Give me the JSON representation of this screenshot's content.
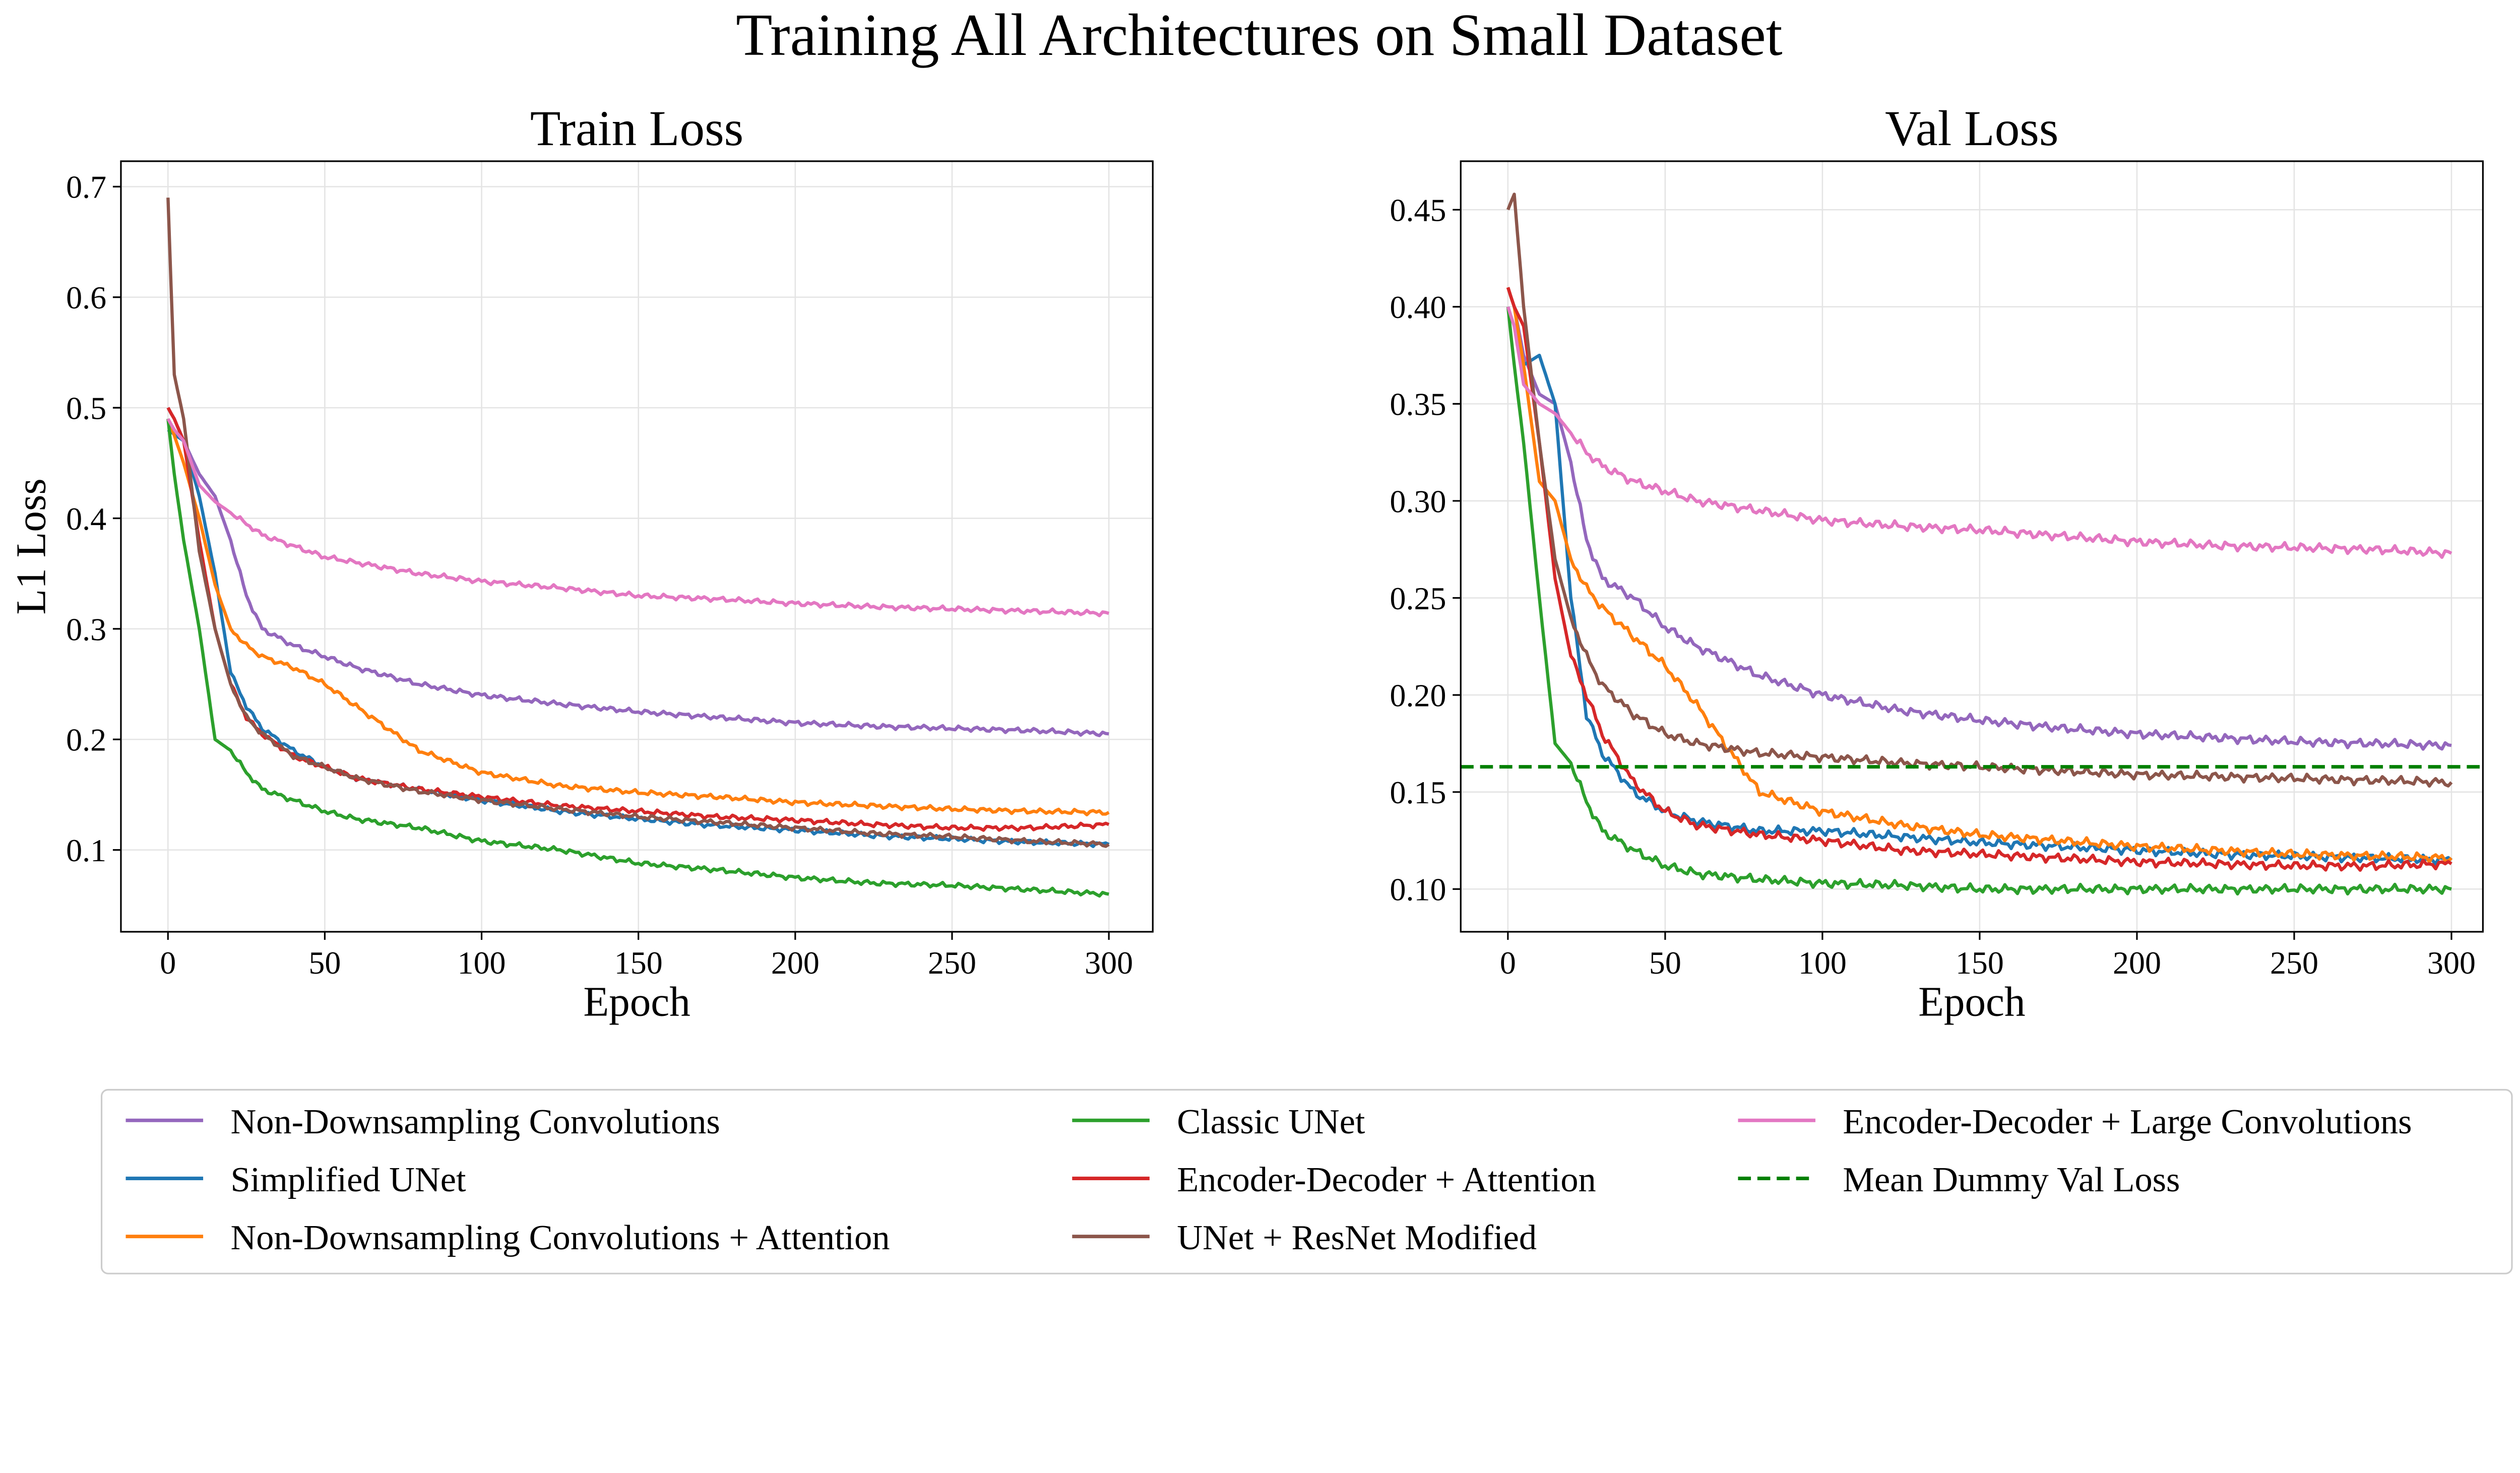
{
  "title": "Training All Architectures on Small Dataset",
  "chart_data": [
    {
      "type": "line",
      "title": "Train Loss",
      "xlabel": "Epoch",
      "ylabel": "L1 Loss",
      "xlim": [
        -15,
        314
      ],
      "ylim": [
        0.026,
        0.723
      ],
      "xticks": [
        0,
        50,
        100,
        150,
        200,
        250,
        300
      ],
      "yticks": [
        0.1,
        0.2,
        0.3,
        0.4,
        0.5,
        0.6,
        0.7
      ],
      "ytick_labels": [
        "0.1",
        "0.2",
        "0.3",
        "0.4",
        "0.5",
        "0.6",
        "0.7"
      ],
      "grid": true,
      "x": [
        0,
        2,
        5,
        10,
        15,
        20,
        25,
        30,
        40,
        50,
        60,
        80,
        100,
        125,
        150,
        175,
        200,
        225,
        250,
        275,
        300
      ],
      "series": [
        {
          "name": "Non-Downsampling Convolutions",
          "color": "#9467bd",
          "values": [
            0.5,
            0.49,
            0.47,
            0.44,
            0.42,
            0.38,
            0.33,
            0.3,
            0.285,
            0.275,
            0.265,
            0.25,
            0.24,
            0.232,
            0.225,
            0.22,
            0.215,
            0.212,
            0.21,
            0.208,
            0.205
          ]
        },
        {
          "name": "Simplified UNet",
          "color": "#1f77b4",
          "values": [
            0.48,
            0.476,
            0.47,
            0.42,
            0.35,
            0.26,
            0.23,
            0.21,
            0.19,
            0.175,
            0.165,
            0.155,
            0.145,
            0.135,
            0.128,
            0.122,
            0.118,
            0.113,
            0.11,
            0.107,
            0.105
          ]
        },
        {
          "name": "Non-Downsampling Convolutions + Attention",
          "color": "#ff7f0e",
          "values": [
            0.49,
            0.475,
            0.45,
            0.4,
            0.34,
            0.3,
            0.285,
            0.275,
            0.265,
            0.25,
            0.23,
            0.19,
            0.17,
            0.158,
            0.152,
            0.148,
            0.143,
            0.14,
            0.137,
            0.135,
            0.134
          ]
        },
        {
          "name": "Classic UNet",
          "color": "#2ca02c",
          "values": [
            0.49,
            0.44,
            0.38,
            0.3,
            0.2,
            0.19,
            0.17,
            0.155,
            0.145,
            0.135,
            0.128,
            0.12,
            0.108,
            0.1,
            0.088,
            0.082,
            0.075,
            0.07,
            0.068,
            0.064,
            0.06
          ]
        },
        {
          "name": "Encoder-Decoder + Attention",
          "color": "#d62728",
          "values": [
            0.5,
            0.49,
            0.47,
            0.38,
            0.3,
            0.25,
            0.22,
            0.205,
            0.185,
            0.175,
            0.165,
            0.155,
            0.148,
            0.14,
            0.135,
            0.13,
            0.127,
            0.123,
            0.12,
            0.12,
            0.123
          ]
        },
        {
          "name": "UNet + ResNet Modified",
          "color": "#8c564b",
          "values": [
            0.69,
            0.53,
            0.49,
            0.37,
            0.3,
            0.25,
            0.22,
            0.205,
            0.185,
            0.175,
            0.165,
            0.153,
            0.145,
            0.137,
            0.13,
            0.125,
            0.12,
            0.115,
            0.112,
            0.108,
            0.105
          ]
        },
        {
          "name": "Encoder-Decoder + Large Convolutions",
          "color": "#e377c2",
          "values": [
            0.49,
            0.48,
            0.47,
            0.43,
            0.415,
            0.405,
            0.395,
            0.385,
            0.375,
            0.365,
            0.36,
            0.35,
            0.343,
            0.337,
            0.33,
            0.327,
            0.323,
            0.32,
            0.318,
            0.316,
            0.314
          ]
        }
      ]
    },
    {
      "type": "line",
      "title": "Val Loss",
      "xlabel": "Epoch",
      "ylabel": "",
      "xlim": [
        -15,
        310
      ],
      "ylim": [
        0.078,
        0.475
      ],
      "xticks": [
        0,
        50,
        100,
        150,
        200,
        250,
        300
      ],
      "yticks": [
        0.1,
        0.15,
        0.2,
        0.25,
        0.3,
        0.35,
        0.4,
        0.45
      ],
      "ytick_labels": [
        "0.10",
        "0.15",
        "0.20",
        "0.25",
        "0.30",
        "0.35",
        "0.40",
        "0.45"
      ],
      "grid": true,
      "x": [
        0,
        2,
        5,
        10,
        15,
        20,
        25,
        30,
        40,
        50,
        60,
        80,
        100,
        125,
        150,
        175,
        200,
        225,
        250,
        275,
        300
      ],
      "series": [
        {
          "name": "Non-Downsampling Convolutions",
          "color": "#9467bd",
          "values": [
            0.41,
            0.4,
            0.375,
            0.355,
            0.35,
            0.32,
            0.28,
            0.26,
            0.25,
            0.235,
            0.225,
            0.21,
            0.2,
            0.192,
            0.187,
            0.183,
            0.18,
            0.178,
            0.176,
            0.175,
            0.174
          ]
        },
        {
          "name": "Simplified UNet",
          "color": "#1f77b4",
          "values": [
            0.4,
            0.39,
            0.37,
            0.375,
            0.35,
            0.25,
            0.19,
            0.17,
            0.15,
            0.14,
            0.135,
            0.13,
            0.13,
            0.127,
            0.124,
            0.122,
            0.12,
            0.118,
            0.117,
            0.116,
            0.115
          ]
        },
        {
          "name": "Non-Downsampling Convolutions + Attention",
          "color": "#ff7f0e",
          "values": [
            0.41,
            0.4,
            0.37,
            0.31,
            0.3,
            0.27,
            0.255,
            0.245,
            0.23,
            0.215,
            0.195,
            0.15,
            0.14,
            0.133,
            0.128,
            0.125,
            0.122,
            0.12,
            0.118,
            0.117,
            0.116
          ]
        },
        {
          "name": "Classic UNet",
          "color": "#2ca02c",
          "values": [
            0.4,
            0.37,
            0.33,
            0.25,
            0.175,
            0.165,
            0.145,
            0.13,
            0.12,
            0.112,
            0.108,
            0.105,
            0.103,
            0.102,
            0.1,
            0.1,
            0.1,
            0.1,
            0.1,
            0.1,
            0.1
          ]
        },
        {
          "name": "Encoder-Decoder + Attention",
          "color": "#d62728",
          "values": [
            0.41,
            0.4,
            0.39,
            0.33,
            0.26,
            0.22,
            0.2,
            0.18,
            0.155,
            0.14,
            0.133,
            0.128,
            0.125,
            0.12,
            0.118,
            0.116,
            0.114,
            0.113,
            0.112,
            0.112,
            0.113
          ]
        },
        {
          "name": "UNet + ResNet Modified",
          "color": "#8c564b",
          "values": [
            0.45,
            0.458,
            0.4,
            0.33,
            0.27,
            0.24,
            0.22,
            0.205,
            0.19,
            0.18,
            0.175,
            0.17,
            0.168,
            0.165,
            0.163,
            0.161,
            0.159,
            0.158,
            0.157,
            0.156,
            0.155
          ]
        },
        {
          "name": "Encoder-Decoder + Large Convolutions",
          "color": "#e377c2",
          "values": [
            0.4,
            0.39,
            0.36,
            0.35,
            0.345,
            0.335,
            0.325,
            0.318,
            0.31,
            0.305,
            0.3,
            0.295,
            0.29,
            0.287,
            0.285,
            0.282,
            0.279,
            0.277,
            0.276,
            0.275,
            0.273
          ]
        }
      ],
      "reference_lines": [
        {
          "name": "Mean Dummy Val Loss",
          "color": "#008000",
          "style": "dashed",
          "y": 0.163
        }
      ]
    }
  ],
  "legend": {
    "placement": "bottom",
    "columns": 3,
    "entries": [
      {
        "label": "Non-Downsampling Convolutions",
        "color": "#9467bd",
        "style": "solid"
      },
      {
        "label": "Simplified UNet",
        "color": "#1f77b4",
        "style": "solid"
      },
      {
        "label": "Non-Downsampling Convolutions + Attention",
        "color": "#ff7f0e",
        "style": "solid"
      },
      {
        "label": "Classic UNet",
        "color": "#2ca02c",
        "style": "solid"
      },
      {
        "label": "Encoder-Decoder + Attention",
        "color": "#d62728",
        "style": "solid"
      },
      {
        "label": "UNet + ResNet Modified",
        "color": "#8c564b",
        "style": "solid"
      },
      {
        "label": "Encoder-Decoder + Large Convolutions",
        "color": "#e377c2",
        "style": "solid"
      },
      {
        "label": "Mean Dummy Val Loss",
        "color": "#008000",
        "style": "dashed"
      }
    ]
  }
}
